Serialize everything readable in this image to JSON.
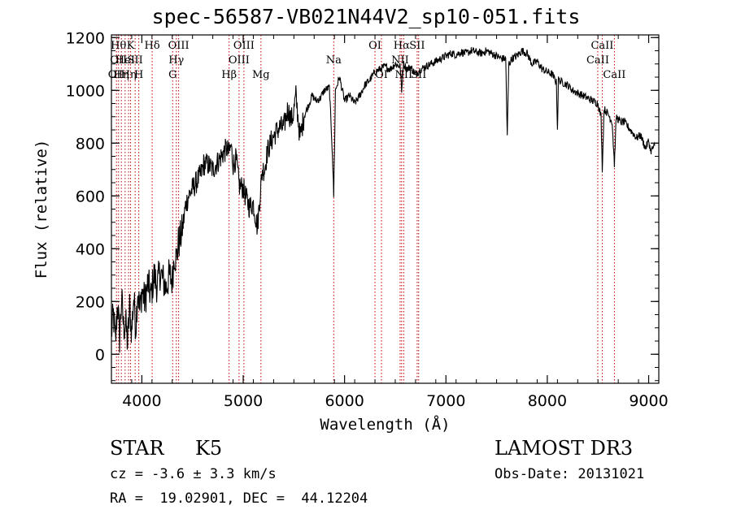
{
  "chart_data": {
    "type": "line",
    "title": "spec-56587-VB021N44V2_sp10-051.fits",
    "xlabel": "Wavelength (Å)",
    "ylabel": "Flux (relative)",
    "xlim": [
      3700,
      9100
    ],
    "ylim": [
      -110,
      1210
    ],
    "x_ticks": [
      4000,
      5000,
      6000,
      7000,
      8000,
      9000
    ],
    "y_ticks": [
      0,
      200,
      400,
      600,
      800,
      1000,
      1200
    ],
    "x_tick_labels": [
      "4000",
      "5000",
      "6000",
      "7000",
      "8000",
      "9000"
    ],
    "y_tick_labels": [
      "0",
      "200",
      "400",
      "600",
      "800",
      "1000",
      "1200"
    ],
    "grid": false,
    "series": [
      {
        "line_color": "#000000",
        "x": [
          3700,
          3720,
          3740,
          3760,
          3780,
          3800,
          3820,
          3840,
          3860,
          3880,
          3900,
          3920,
          3940,
          3960,
          3980,
          4000,
          4030,
          4060,
          4090,
          4120,
          4150,
          4180,
          4210,
          4240,
          4270,
          4300,
          4320,
          4340,
          4360,
          4380,
          4400,
          4430,
          4460,
          4490,
          4520,
          4550,
          4580,
          4610,
          4650,
          4700,
          4750,
          4800,
          4840,
          4860,
          4880,
          4900,
          4930,
          4960,
          5000,
          5030,
          5060,
          5100,
          5140,
          5170,
          5190,
          5210,
          5240,
          5280,
          5320,
          5360,
          5400,
          5440,
          5470,
          5490,
          5520,
          5560,
          5600,
          5640,
          5680,
          5720,
          5760,
          5800,
          5850,
          5880,
          5893,
          5910,
          5950,
          6000,
          6050,
          6100,
          6150,
          6200,
          6250,
          6300,
          6350,
          6400,
          6450,
          6500,
          6550,
          6563,
          6580,
          6620,
          6650,
          6700,
          6750,
          6800,
          6850,
          6900,
          6950,
          7000,
          7050,
          7100,
          7150,
          7200,
          7250,
          7300,
          7350,
          7400,
          7450,
          7500,
          7550,
          7590,
          7605,
          7620,
          7650,
          7700,
          7750,
          7800,
          7850,
          7900,
          7950,
          8000,
          8050,
          8090,
          8100,
          8110,
          8150,
          8200,
          8250,
          8300,
          8350,
          8400,
          8450,
          8500,
          8530,
          8542,
          8560,
          8600,
          8640,
          8662,
          8680,
          8720,
          8760,
          8800,
          8840,
          8880,
          8920,
          8950,
          8970,
          9000,
          9020,
          9040,
          9060
        ],
        "y": [
          80,
          150,
          40,
          200,
          60,
          210,
          100,
          120,
          40,
          180,
          80,
          220,
          100,
          250,
          160,
          240,
          200,
          270,
          220,
          300,
          260,
          310,
          280,
          250,
          300,
          280,
          380,
          360,
          420,
          440,
          470,
          560,
          600,
          620,
          640,
          660,
          680,
          720,
          720,
          700,
          730,
          760,
          780,
          760,
          790,
          720,
          740,
          640,
          630,
          590,
          560,
          570,
          480,
          620,
          700,
          700,
          770,
          810,
          840,
          860,
          860,
          930,
          890,
          900,
          980,
          820,
          900,
          940,
          980,
          960,
          970,
          1000,
          1010,
          760,
          600,
          1000,
          1050,
          960,
          980,
          950,
          980,
          1020,
          1040,
          1070,
          1080,
          1090,
          1080,
          1100,
          1090,
          990,
          1100,
          1080,
          1090,
          1060,
          1080,
          1090,
          1100,
          1110,
          1120,
          1130,
          1140,
          1135,
          1145,
          1140,
          1150,
          1145,
          1140,
          1150,
          1140,
          1130,
          1120,
          1120,
          820,
          1100,
          1120,
          1130,
          1150,
          1140,
          1100,
          1110,
          1080,
          1070,
          1060,
          1030,
          850,
          1040,
          1030,
          1020,
          1000,
          990,
          980,
          970,
          960,
          950,
          900,
          700,
          930,
          910,
          880,
          720,
          900,
          880,
          880,
          860,
          840,
          820,
          830,
          800,
          780,
          810,
          770,
          780,
          790
        ]
      }
    ],
    "lines": [
      {
        "x": 3750,
        "labels": [
          {
            "row": 2,
            "text": "OII"
          }
        ]
      },
      {
        "x": 3770,
        "labels": [
          {
            "row": 0,
            "text": "Hθ"
          },
          {
            "row": 1,
            "text": "OII"
          }
        ]
      },
      {
        "x": 3798,
        "labels": [
          {
            "row": 2,
            "text": "Hη"
          }
        ]
      },
      {
        "x": 3835,
        "labels": [
          {
            "row": 1,
            "text": "HeI"
          }
        ]
      },
      {
        "x": 3869,
        "labels": [
          {
            "row": 2,
            "text": "Hη"
          }
        ]
      },
      {
        "x": 3889,
        "labels": [
          {
            "row": 0,
            "text": "K"
          }
        ]
      },
      {
        "x": 3934,
        "labels": [
          {
            "row": 1,
            "text": "SII"
          }
        ]
      },
      {
        "x": 3970,
        "labels": [
          {
            "row": 2,
            "text": "H"
          }
        ]
      },
      {
        "x": 4102,
        "labels": [
          {
            "row": 0,
            "text": "Hδ"
          }
        ]
      },
      {
        "x": 4304,
        "labels": [
          {
            "row": 2,
            "text": "G"
          }
        ]
      },
      {
        "x": 4340,
        "labels": [
          {
            "row": 1,
            "text": "Hγ"
          }
        ]
      },
      {
        "x": 4363,
        "labels": [
          {
            "row": 0,
            "text": "OIII"
          }
        ]
      },
      {
        "x": 4861,
        "labels": [
          {
            "row": 2,
            "text": "Hβ"
          }
        ]
      },
      {
        "x": 4959,
        "labels": [
          {
            "row": 1,
            "text": "OIII"
          }
        ]
      },
      {
        "x": 5007,
        "labels": [
          {
            "row": 0,
            "text": "OIII"
          }
        ]
      },
      {
        "x": 5175,
        "labels": [
          {
            "row": 2,
            "text": "Mg"
          }
        ]
      },
      {
        "x": 5893,
        "labels": [
          {
            "row": 1,
            "text": "Na"
          }
        ]
      },
      {
        "x": 6300,
        "labels": [
          {
            "row": 0,
            "text": "OI"
          }
        ]
      },
      {
        "x": 6364,
        "labels": [
          {
            "row": 2,
            "text": "OI"
          }
        ]
      },
      {
        "x": 6548,
        "labels": [
          {
            "row": 1,
            "text": "NII"
          }
        ]
      },
      {
        "x": 6563,
        "labels": [
          {
            "row": 0,
            "text": "Hα"
          }
        ]
      },
      {
        "x": 6583,
        "labels": [
          {
            "row": 2,
            "text": "NII"
          }
        ]
      },
      {
        "x": 6716,
        "labels": [
          {
            "row": 0,
            "text": "SII"
          }
        ]
      },
      {
        "x": 6731,
        "labels": [
          {
            "row": 2,
            "text": "SII"
          }
        ]
      },
      {
        "x": 8498,
        "labels": [
          {
            "row": 1,
            "text": "CaII"
          }
        ]
      },
      {
        "x": 8542,
        "labels": [
          {
            "row": 0,
            "text": "CaII"
          }
        ]
      },
      {
        "x": 8662,
        "labels": [
          {
            "row": 2,
            "text": "CaII"
          }
        ]
      }
    ],
    "line_color": "#c00000"
  },
  "info": {
    "object_class": "STAR",
    "subclass": "K5",
    "survey": "LAMOST DR3",
    "redshift": "cz = -3.6 ± 3.3 km/s",
    "obs_date": "Obs-Date: 20131021",
    "coords": "RA =  19.02901, DEC =  44.12204"
  }
}
